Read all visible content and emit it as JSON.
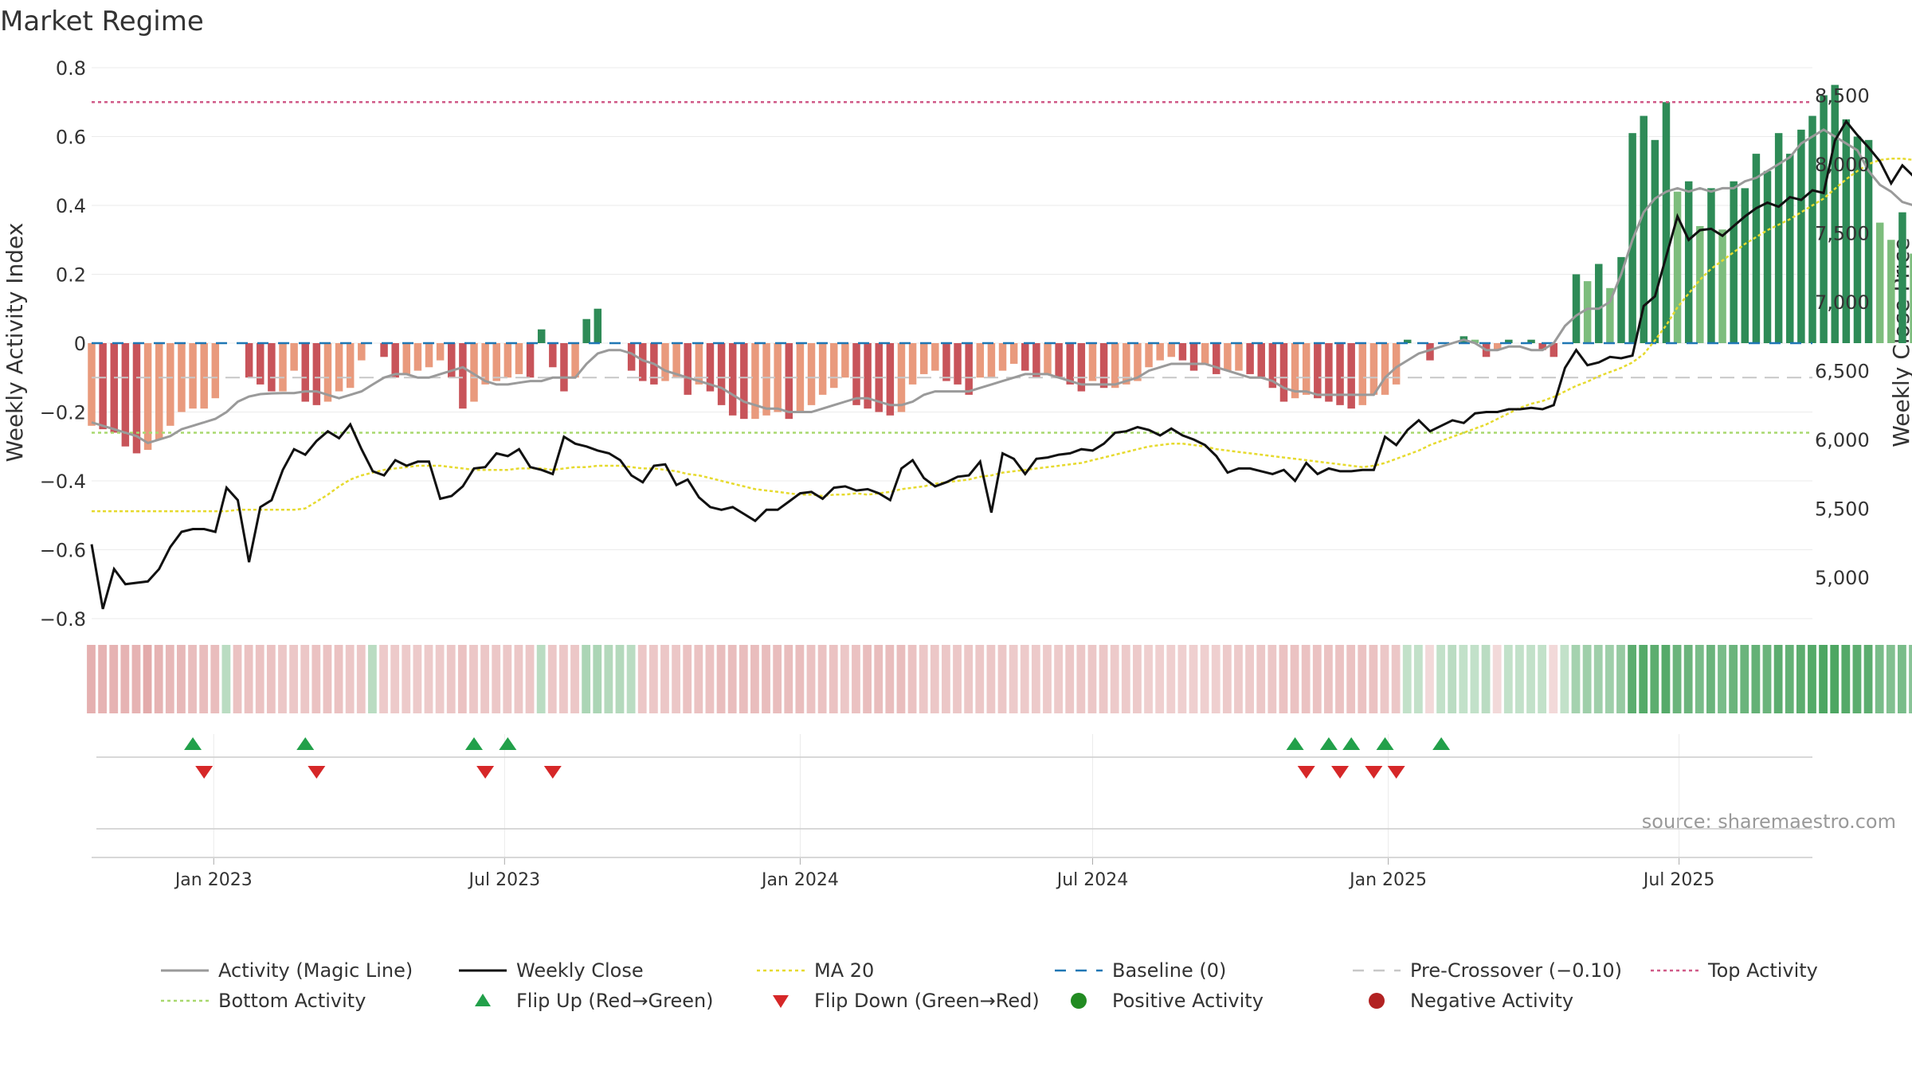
{
  "chart_data": {
    "type": "bar",
    "title": "Market Regime",
    "ylabel_left": "Weekly Activity Index",
    "ylabel_right": "Weekly Close Price",
    "source": "source: sharemaestro.com",
    "left_axis": {
      "ylim": [
        -0.8,
        0.8
      ],
      "ticks": [
        "0.8",
        "0.6",
        "0.4",
        "0.2",
        "0",
        "−0.2",
        "−0.4",
        "−0.6",
        "−0.8"
      ]
    },
    "right_axis": {
      "ylim": [
        4700,
        8700
      ],
      "ticks": [
        "8,500",
        "8,000",
        "7,500",
        "7,000",
        "6,500",
        "6,000",
        "5,500",
        "5,000"
      ]
    },
    "x_ticks": [
      "Jan 2023",
      "Jul 2023",
      "Jan 2024",
      "Jul 2024",
      "Jan 2025",
      "Jul 2025"
    ],
    "x_range": [
      "2022-10-17",
      "2025-09-22"
    ],
    "reference_lines": {
      "top_activity": 0.7,
      "bottom_activity": -0.26,
      "baseline": 0,
      "pre_crossover": -0.1
    },
    "week_start": "2022-10-17",
    "activity": [
      -0.24,
      -0.25,
      -0.26,
      -0.3,
      -0.32,
      -0.31,
      -0.28,
      -0.24,
      -0.2,
      -0.19,
      -0.19,
      -0.16,
      0,
      0,
      -0.1,
      -0.12,
      -0.14,
      -0.14,
      -0.08,
      -0.17,
      -0.18,
      -0.17,
      -0.14,
      -0.13,
      -0.05,
      0,
      -0.04,
      -0.1,
      -0.09,
      -0.08,
      -0.07,
      -0.05,
      -0.1,
      -0.19,
      -0.17,
      -0.12,
      -0.11,
      -0.1,
      -0.09,
      -0.1,
      0.04,
      -0.07,
      -0.14,
      -0.1,
      0.07,
      0.1,
      0,
      0,
      -0.08,
      -0.11,
      -0.12,
      -0.11,
      -0.1,
      -0.15,
      -0.12,
      -0.14,
      -0.18,
      -0.21,
      -0.22,
      -0.22,
      -0.21,
      -0.2,
      -0.22,
      -0.2,
      -0.18,
      -0.15,
      -0.13,
      -0.1,
      -0.18,
      -0.19,
      -0.2,
      -0.21,
      -0.2,
      -0.12,
      -0.09,
      -0.08,
      -0.11,
      -0.12,
      -0.15,
      -0.1,
      -0.1,
      -0.08,
      -0.06,
      -0.08,
      -0.1,
      -0.09,
      -0.1,
      -0.12,
      -0.14,
      -0.11,
      -0.13,
      -0.13,
      -0.12,
      -0.11,
      -0.07,
      -0.05,
      -0.04,
      -0.05,
      -0.08,
      -0.06,
      -0.09,
      -0.08,
      -0.08,
      -0.09,
      -0.1,
      -0.13,
      -0.17,
      -0.16,
      -0.15,
      -0.16,
      -0.17,
      -0.18,
      -0.19,
      -0.18,
      -0.15,
      -0.15,
      -0.12,
      0.01,
      0,
      -0.05,
      0,
      0,
      0.02,
      0.01,
      -0.04,
      -0.02,
      0.01,
      0,
      0.01,
      -0.02,
      -0.04,
      0,
      0.2,
      0.18,
      0.23,
      0.16,
      0.25,
      0.61,
      0.66,
      0.59,
      0.7,
      0.44,
      0.47,
      0.34,
      0.45,
      0.33,
      0.47,
      0.45,
      0.55,
      0.5,
      0.61,
      0.55,
      0.62,
      0.66,
      0.72,
      0.75,
      0.65,
      0.6,
      0.59,
      0.35,
      0.3,
      0.38,
      0.26,
      0.33,
      0.4
    ],
    "magic_line": [
      -0.23,
      -0.24,
      -0.25,
      -0.26,
      -0.27,
      -0.29,
      -0.28,
      -0.27,
      -0.25,
      -0.24,
      -0.23,
      -0.22,
      -0.2,
      -0.17,
      -0.155,
      -0.148,
      -0.146,
      -0.145,
      -0.145,
      -0.14,
      -0.14,
      -0.15,
      -0.16,
      -0.15,
      -0.14,
      -0.12,
      -0.1,
      -0.09,
      -0.09,
      -0.1,
      -0.1,
      -0.09,
      -0.08,
      -0.07,
      -0.09,
      -0.11,
      -0.12,
      -0.12,
      -0.115,
      -0.11,
      -0.11,
      -0.1,
      -0.1,
      -0.1,
      -0.06,
      -0.03,
      -0.02,
      -0.02,
      -0.03,
      -0.05,
      -0.06,
      -0.08,
      -0.09,
      -0.1,
      -0.11,
      -0.12,
      -0.13,
      -0.15,
      -0.17,
      -0.18,
      -0.19,
      -0.19,
      -0.2,
      -0.2,
      -0.2,
      -0.19,
      -0.18,
      -0.17,
      -0.16,
      -0.16,
      -0.17,
      -0.18,
      -0.18,
      -0.17,
      -0.15,
      -0.14,
      -0.14,
      -0.14,
      -0.14,
      -0.13,
      -0.12,
      -0.11,
      -0.1,
      -0.09,
      -0.09,
      -0.09,
      -0.1,
      -0.11,
      -0.12,
      -0.12,
      -0.12,
      -0.12,
      -0.11,
      -0.1,
      -0.08,
      -0.07,
      -0.06,
      -0.06,
      -0.06,
      -0.06,
      -0.07,
      -0.08,
      -0.09,
      -0.1,
      -0.1,
      -0.11,
      -0.13,
      -0.14,
      -0.14,
      -0.15,
      -0.15,
      -0.15,
      -0.15,
      -0.15,
      -0.15,
      -0.1,
      -0.07,
      -0.05,
      -0.03,
      -0.02,
      -0.01,
      0,
      0.01,
      0,
      -0.02,
      -0.02,
      -0.01,
      -0.01,
      -0.02,
      -0.02,
      0,
      0.05,
      0.08,
      0.1,
      0.1,
      0.12,
      0.2,
      0.3,
      0.38,
      0.42,
      0.44,
      0.45,
      0.44,
      0.45,
      0.44,
      0.45,
      0.45,
      0.47,
      0.48,
      0.5,
      0.52,
      0.54,
      0.58,
      0.6,
      0.62,
      0.6,
      0.58,
      0.56,
      0.5,
      0.46,
      0.44,
      0.41,
      0.4,
      0.4
    ],
    "weekly_close": [
      5240,
      4770,
      5060,
      4950,
      4960,
      4970,
      5060,
      5220,
      5330,
      5350,
      5350,
      5330,
      5650,
      5560,
      5110,
      5510,
      5560,
      5780,
      5930,
      5890,
      5990,
      6060,
      6010,
      6110,
      5930,
      5770,
      5740,
      5850,
      5810,
      5840,
      5840,
      5570,
      5590,
      5660,
      5790,
      5800,
      5900,
      5880,
      5930,
      5800,
      5780,
      5750,
      6020,
      5970,
      5950,
      5920,
      5900,
      5850,
      5740,
      5690,
      5810,
      5820,
      5670,
      5710,
      5580,
      5510,
      5490,
      5510,
      5460,
      5410,
      5490,
      5490,
      5550,
      5610,
      5620,
      5570,
      5650,
      5660,
      5630,
      5640,
      5610,
      5560,
      5790,
      5850,
      5720,
      5660,
      5690,
      5730,
      5740,
      5840,
      5470,
      5900,
      5860,
      5750,
      5860,
      5870,
      5890,
      5900,
      5930,
      5920,
      5970,
      6050,
      6060,
      6090,
      6070,
      6030,
      6080,
      6030,
      6000,
      5960,
      5880,
      5760,
      5790,
      5790,
      5770,
      5750,
      5780,
      5700,
      5830,
      5750,
      5790,
      5770,
      5770,
      5780,
      5780,
      6020,
      5960,
      6070,
      6140,
      6060,
      6100,
      6140,
      6120,
      6190,
      6200,
      6200,
      6220,
      6220,
      6230,
      6220,
      6250,
      6520,
      6650,
      6540,
      6560,
      6600,
      6590,
      6610,
      6970,
      7040,
      7330,
      7620,
      7450,
      7520,
      7530,
      7480,
      7550,
      7620,
      7680,
      7720,
      7690,
      7760,
      7740,
      7810,
      7790,
      8170,
      8310,
      8210,
      8120,
      8020,
      7860,
      7990,
      7910,
      7890,
      7850,
      8040,
      8290
    ],
    "ma20": [
      5480,
      5480,
      5480,
      5480,
      5480,
      5480,
      5480,
      5480,
      5480,
      5480,
      5480,
      5480,
      5480,
      5490,
      5490,
      5490,
      5490,
      5490,
      5490,
      5500,
      5550,
      5600,
      5660,
      5710,
      5740,
      5760,
      5780,
      5790,
      5800,
      5810,
      5810,
      5810,
      5800,
      5790,
      5780,
      5780,
      5780,
      5780,
      5790,
      5790,
      5790,
      5780,
      5790,
      5800,
      5800,
      5810,
      5810,
      5810,
      5800,
      5790,
      5790,
      5780,
      5770,
      5750,
      5740,
      5720,
      5700,
      5680,
      5660,
      5640,
      5630,
      5620,
      5610,
      5600,
      5600,
      5590,
      5600,
      5600,
      5610,
      5600,
      5610,
      5620,
      5640,
      5650,
      5660,
      5680,
      5690,
      5700,
      5710,
      5730,
      5740,
      5760,
      5770,
      5780,
      5790,
      5800,
      5810,
      5820,
      5830,
      5850,
      5870,
      5890,
      5910,
      5930,
      5950,
      5960,
      5970,
      5970,
      5960,
      5950,
      5930,
      5920,
      5910,
      5900,
      5890,
      5880,
      5870,
      5860,
      5850,
      5840,
      5830,
      5820,
      5810,
      5800,
      5810,
      5830,
      5860,
      5890,
      5920,
      5960,
      5990,
      6020,
      6050,
      6080,
      6110,
      6150,
      6190,
      6230,
      6260,
      6280,
      6310,
      6350,
      6390,
      6420,
      6460,
      6490,
      6520,
      6560,
      6620,
      6720,
      6830,
      6960,
      7060,
      7160,
      7240,
      7300,
      7360,
      7420,
      7470,
      7520,
      7560,
      7600,
      7650,
      7700,
      7750,
      7820,
      7890,
      7950,
      8000,
      8030,
      8040,
      8040,
      8030,
      8030,
      8020,
      8030,
      8050
    ],
    "regime_intensity": [
      -0.55,
      -0.5,
      -0.5,
      -0.5,
      -0.5,
      -0.6,
      -0.5,
      -0.45,
      -0.45,
      -0.4,
      -0.4,
      -0.4,
      0.15,
      -0.35,
      -0.35,
      -0.35,
      -0.35,
      -0.3,
      -0.3,
      -0.3,
      -0.35,
      -0.35,
      -0.35,
      -0.3,
      -0.3,
      0.15,
      -0.25,
      -0.25,
      -0.25,
      -0.25,
      -0.25,
      -0.25,
      -0.3,
      -0.35,
      -0.3,
      -0.3,
      -0.3,
      -0.3,
      -0.3,
      -0.3,
      0.15,
      -0.3,
      -0.3,
      -0.3,
      0.25,
      0.25,
      0.2,
      0.2,
      0.15,
      -0.3,
      -0.3,
      -0.3,
      -0.3,
      -0.35,
      -0.35,
      -0.35,
      -0.4,
      -0.4,
      -0.4,
      -0.4,
      -0.4,
      -0.4,
      -0.4,
      -0.4,
      -0.35,
      -0.35,
      -0.35,
      -0.3,
      -0.35,
      -0.4,
      -0.4,
      -0.4,
      -0.4,
      -0.35,
      -0.3,
      -0.3,
      -0.3,
      -0.3,
      -0.3,
      -0.3,
      -0.3,
      -0.3,
      -0.25,
      -0.25,
      -0.25,
      -0.25,
      -0.25,
      -0.3,
      -0.3,
      -0.3,
      -0.3,
      -0.25,
      -0.25,
      -0.25,
      -0.2,
      -0.2,
      -0.2,
      -0.2,
      -0.2,
      -0.2,
      -0.2,
      -0.25,
      -0.25,
      -0.25,
      -0.3,
      -0.3,
      -0.35,
      -0.35,
      -0.35,
      -0.35,
      -0.35,
      -0.35,
      -0.35,
      -0.35,
      -0.35,
      -0.3,
      -0.3,
      0.1,
      0.1,
      -0.1,
      0.1,
      0.15,
      0.1,
      0.1,
      0.15,
      -0.1,
      0.1,
      0.1,
      0.1,
      0.1,
      -0.1,
      0.1,
      0.3,
      0.35,
      0.35,
      0.35,
      0.4,
      0.8,
      0.85,
      0.8,
      0.85,
      0.7,
      0.7,
      0.6,
      0.7,
      0.6,
      0.7,
      0.7,
      0.75,
      0.7,
      0.8,
      0.75,
      0.8,
      0.85,
      0.9,
      0.9,
      0.85,
      0.8,
      0.8,
      0.6,
      0.55,
      0.6,
      0.5,
      0.55,
      0.6
    ],
    "flip_up": [
      "2022-12-19",
      "2023-02-27",
      "2023-06-12",
      "2023-07-03",
      "2024-11-04",
      "2024-11-25",
      "2024-12-09",
      "2024-12-30",
      "2025-02-03"
    ],
    "flip_down": [
      "2022-12-26",
      "2023-03-06",
      "2023-06-19",
      "2023-07-31",
      "2024-11-11",
      "2024-12-02",
      "2024-12-23",
      "2025-01-06"
    ],
    "colors": {
      "bar_strong_neg": "#c8545a",
      "bar_weak_neg": "#e99a7d",
      "bar_strong_pos": "#2e8b57",
      "bar_weak_pos": "#7dbd7d",
      "magic_line": "#9a9a9a",
      "weekly_close": "#111111",
      "ma20": "#e6da2e",
      "baseline": "#1f77b4",
      "pre_crossover": "#c7c7c7",
      "top_activity": "#d05a88",
      "bottom_activity": "#a8d86e",
      "flip_up": "#22a04a",
      "flip_down": "#d62728",
      "positive_activity": "#228b22",
      "negative_activity": "#b22222"
    }
  },
  "legend": {
    "row1": [
      {
        "name": "legend-magic-line",
        "label": "Activity (Magic Line)",
        "kind": "line",
        "color": "#9a9a9a"
      },
      {
        "name": "legend-weekly-close",
        "label": "Weekly Close",
        "kind": "line",
        "color": "#111111"
      },
      {
        "name": "legend-ma20",
        "label": "MA 20",
        "kind": "dotted",
        "color": "#e6da2e"
      },
      {
        "name": "legend-baseline",
        "label": "Baseline (0)",
        "kind": "dashed",
        "color": "#1f77b4"
      },
      {
        "name": "legend-pre-crossover",
        "label": "Pre-Crossover (−0.10)",
        "kind": "dashed",
        "color": "#c7c7c7"
      },
      {
        "name": "legend-top-activity",
        "label": "Top Activity",
        "kind": "dotted",
        "color": "#d05a88"
      }
    ],
    "row2": [
      {
        "name": "legend-bottom-activity",
        "label": "Bottom Activity",
        "kind": "dotted",
        "color": "#a8d86e"
      },
      {
        "name": "legend-flip-up",
        "label": "Flip Up (Red→Green)",
        "kind": "triangle-up",
        "color": "#22a04a"
      },
      {
        "name": "legend-flip-down",
        "label": "Flip Down (Green→Red)",
        "kind": "triangle-down",
        "color": "#d62728"
      },
      {
        "name": "legend-positive-activity",
        "label": "Positive Activity",
        "kind": "dot",
        "color": "#228b22"
      },
      {
        "name": "legend-negative-activity",
        "label": "Negative Activity",
        "kind": "dot",
        "color": "#b22222"
      }
    ]
  }
}
